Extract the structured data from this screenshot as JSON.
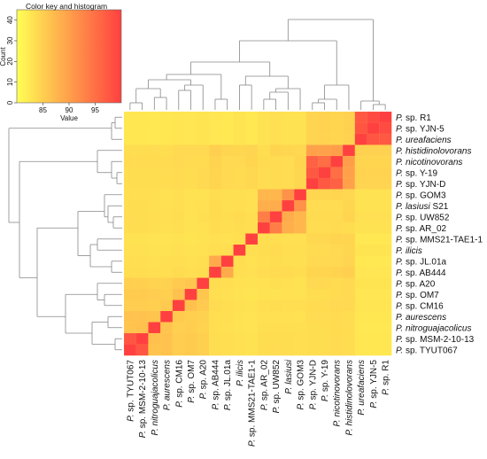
{
  "chart_data": {
    "type": "heatmap",
    "color_key": {
      "title": "Color key and histogram",
      "xlabel": "Value",
      "ylabel": "Count",
      "x_ticks": [
        "85",
        "90",
        "95"
      ],
      "y_ticks": [
        "0",
        "10",
        "20",
        "30",
        "40"
      ],
      "value_range": [
        80,
        100
      ],
      "count_range": [
        0,
        45
      ],
      "low_color": "#ffff55",
      "high_color": "#ff4040"
    },
    "rows": [
      {
        "genus": "P.",
        "species": "sp. R1",
        "italic": ""
      },
      {
        "genus": "P.",
        "species": "sp. YJN-5",
        "italic": ""
      },
      {
        "genus": "P.",
        "species": "",
        "italic": "ureafaciens"
      },
      {
        "genus": "P.",
        "species": "",
        "italic": "histidinolovorans"
      },
      {
        "genus": "P.",
        "species": "",
        "italic": "nicotinovorans"
      },
      {
        "genus": "P.",
        "species": "sp. Y-19",
        "italic": ""
      },
      {
        "genus": "P.",
        "species": "sp. YJN-D",
        "italic": ""
      },
      {
        "genus": "P.",
        "species": "sp. GOM3",
        "italic": ""
      },
      {
        "genus": "P.",
        "species": "S21",
        "italic": "lasiusi"
      },
      {
        "genus": "P.",
        "species": "sp. UW852",
        "italic": ""
      },
      {
        "genus": "P.",
        "species": "sp. AR_02",
        "italic": ""
      },
      {
        "genus": "P.",
        "species": "sp. MMS21-TAE1-1",
        "italic": ""
      },
      {
        "genus": "P.",
        "species": "",
        "italic": "ilicis"
      },
      {
        "genus": "P.",
        "species": "sp. JL.01a",
        "italic": ""
      },
      {
        "genus": "P.",
        "species": "sp. AB444",
        "italic": ""
      },
      {
        "genus": "P.",
        "species": "sp. A20",
        "italic": ""
      },
      {
        "genus": "P.",
        "species": "sp. OM7",
        "italic": ""
      },
      {
        "genus": "P.",
        "species": "sp. CM16",
        "italic": ""
      },
      {
        "genus": "P.",
        "species": "",
        "italic": "aurescens"
      },
      {
        "genus": "P.",
        "species": "",
        "italic": "nitroguajacolicus"
      },
      {
        "genus": "P.",
        "species": "sp. MSM-2-10-13",
        "italic": ""
      },
      {
        "genus": "P.",
        "species": "sp. TYUT067",
        "italic": ""
      }
    ],
    "columns": [
      {
        "genus": "P.",
        "species": "sp. TYUT067",
        "italic": ""
      },
      {
        "genus": "P.",
        "species": "sp. MSM-2-10-13",
        "italic": ""
      },
      {
        "genus": "P.",
        "species": "",
        "italic": "nitroguajacolicus"
      },
      {
        "genus": "P.",
        "species": "",
        "italic": "aurescens"
      },
      {
        "genus": "P.",
        "species": "sp. CM16",
        "italic": ""
      },
      {
        "genus": "P.",
        "species": "sp. OM7",
        "italic": ""
      },
      {
        "genus": "P.",
        "species": "sp. A20",
        "italic": ""
      },
      {
        "genus": "P.",
        "species": "sp. AB444",
        "italic": ""
      },
      {
        "genus": "P.",
        "species": "sp. JL.01a",
        "italic": ""
      },
      {
        "genus": "P.",
        "species": "",
        "italic": "ilicis"
      },
      {
        "genus": "P.",
        "species": "sp. MMS21-TAE1-1",
        "italic": ""
      },
      {
        "genus": "P.",
        "species": "sp. AR_02",
        "italic": ""
      },
      {
        "genus": "P.",
        "species": "sp. UW852",
        "italic": ""
      },
      {
        "genus": "P.",
        "species": "",
        "italic": "lasiusi"
      },
      {
        "genus": "P.",
        "species": "sp. GOM3",
        "italic": ""
      },
      {
        "genus": "P.",
        "species": "sp. YJN-D",
        "italic": ""
      },
      {
        "genus": "P.",
        "species": "sp. Y-19",
        "italic": ""
      },
      {
        "genus": "P.",
        "species": "",
        "italic": "nicotinovorans"
      },
      {
        "genus": "P.",
        "species": "",
        "italic": "histidinolovorans"
      },
      {
        "genus": "P.",
        "species": "",
        "italic": "ureafaciens"
      },
      {
        "genus": "P.",
        "species": "sp. YJN-5",
        "italic": ""
      },
      {
        "genus": "P.",
        "species": "sp. R1",
        "italic": ""
      }
    ],
    "values": [
      [
        82.5,
        82.5,
        82.4,
        82.5,
        82.7,
        82.6,
        82.8,
        82.6,
        82.4,
        82.8,
        82.4,
        83.0,
        83.2,
        83.0,
        83.0,
        84.5,
        84.6,
        84.4,
        84.8,
        97.5,
        98.8,
        100
      ],
      [
        82.5,
        82.5,
        82.4,
        82.5,
        82.7,
        82.6,
        82.8,
        82.6,
        82.4,
        82.8,
        82.4,
        83.0,
        83.2,
        83.0,
        83.0,
        84.5,
        84.6,
        84.4,
        84.8,
        97.8,
        100,
        98.8
      ],
      [
        82.5,
        82.5,
        82.4,
        82.5,
        82.7,
        82.6,
        82.8,
        82.6,
        82.4,
        82.8,
        82.4,
        83.0,
        83.2,
        83.0,
        83.0,
        84.5,
        84.6,
        84.4,
        84.8,
        100,
        97.8,
        97.5
      ],
      [
        83.6,
        83.6,
        83.7,
        83.6,
        84.0,
        84.0,
        84.0,
        85.0,
        84.5,
        84.3,
        84.5,
        83.6,
        84.4,
        84.3,
        84.2,
        89.8,
        89.8,
        90.2,
        100,
        84.8,
        84.8,
        84.8
      ],
      [
        83.8,
        83.8,
        83.8,
        83.8,
        84.0,
        83.8,
        83.8,
        84.6,
        84.0,
        84.0,
        84.4,
        83.8,
        83.8,
        83.7,
        84.4,
        96.5,
        95.2,
        100,
        90.2,
        84.4,
        84.4,
        84.4
      ],
      [
        83.6,
        83.6,
        83.6,
        83.7,
        83.8,
        83.6,
        84.0,
        84.4,
        84.0,
        83.8,
        84.1,
        83.7,
        83.8,
        83.7,
        84.3,
        97.5,
        100,
        95.2,
        89.8,
        84.6,
        84.6,
        84.6
      ],
      [
        83.6,
        83.6,
        83.6,
        83.7,
        83.8,
        83.6,
        84.0,
        84.4,
        84.0,
        83.8,
        84.1,
        83.7,
        83.8,
        83.7,
        84.3,
        100,
        97.5,
        96.5,
        89.8,
        84.5,
        84.5,
        84.5
      ],
      [
        83.4,
        83.4,
        83.3,
        83.1,
        83.4,
        83.0,
        83.0,
        83.6,
        83.3,
        83.3,
        83.2,
        87.5,
        87.5,
        91.5,
        100,
        84.3,
        84.3,
        84.4,
        84.2,
        83.0,
        83.0,
        83.0
      ],
      [
        83.6,
        83.6,
        83.3,
        83.2,
        83.4,
        83.1,
        83.2,
        83.8,
        83.3,
        83.5,
        83.2,
        88.5,
        88.6,
        100,
        91.5,
        83.7,
        83.7,
        83.7,
        84.3,
        83.0,
        83.0,
        83.0
      ],
      [
        83.7,
        83.6,
        83.4,
        83.2,
        83.6,
        83.0,
        83.3,
        83.8,
        83.6,
        83.8,
        83.4,
        93.5,
        100,
        88.6,
        87.5,
        83.8,
        83.8,
        83.8,
        84.4,
        83.2,
        83.2,
        83.2
      ],
      [
        83.6,
        83.6,
        83.3,
        83.2,
        83.4,
        83.0,
        83.1,
        83.7,
        83.4,
        83.6,
        83.5,
        100,
        93.5,
        88.5,
        87.5,
        83.7,
        83.7,
        83.8,
        83.6,
        83.0,
        83.0,
        83.0
      ],
      [
        83.0,
        83.0,
        82.9,
        82.9,
        83.0,
        82.8,
        83.0,
        83.2,
        83.1,
        83.4,
        100,
        83.5,
        83.4,
        83.2,
        83.2,
        84.1,
        84.1,
        84.4,
        84.5,
        82.4,
        82.4,
        82.4
      ],
      [
        83.2,
        83.2,
        83.0,
        83.0,
        83.2,
        83.0,
        83.1,
        83.4,
        83.5,
        100,
        83.4,
        83.6,
        83.8,
        83.5,
        83.3,
        83.8,
        83.8,
        84.0,
        84.3,
        82.8,
        82.8,
        82.8
      ],
      [
        83.4,
        83.4,
        83.2,
        83.3,
        83.5,
        83.2,
        83.4,
        88.8,
        100,
        83.5,
        83.1,
        83.4,
        83.6,
        83.3,
        83.3,
        84.0,
        84.0,
        84.0,
        84.5,
        82.4,
        82.4,
        82.4
      ],
      [
        83.6,
        83.6,
        83.4,
        83.5,
        83.8,
        83.4,
        83.6,
        100,
        88.8,
        83.4,
        83.2,
        83.7,
        83.8,
        83.8,
        83.6,
        84.4,
        84.4,
        84.6,
        85.0,
        82.6,
        82.6,
        82.6
      ],
      [
        85.0,
        85.0,
        84.7,
        84.8,
        85.5,
        86.0,
        100,
        83.6,
        83.4,
        83.1,
        83.0,
        83.1,
        83.3,
        83.2,
        83.0,
        84.0,
        84.0,
        83.8,
        84.0,
        82.8,
        82.8,
        82.8
      ],
      [
        85.4,
        85.4,
        85.2,
        85.0,
        86.5,
        100,
        86.0,
        83.4,
        83.2,
        83.0,
        82.8,
        83.0,
        83.0,
        83.1,
        83.0,
        83.6,
        83.6,
        83.8,
        84.0,
        82.6,
        82.6,
        82.6
      ],
      [
        85.2,
        85.2,
        85.0,
        85.6,
        100,
        86.5,
        85.5,
        83.8,
        83.5,
        83.2,
        83.0,
        83.4,
        83.6,
        83.4,
        83.4,
        83.8,
        83.8,
        84.0,
        84.0,
        82.7,
        82.7,
        82.7
      ],
      [
        86.4,
        86.4,
        86.2,
        100,
        85.6,
        85.0,
        84.8,
        83.5,
        83.3,
        83.0,
        82.9,
        83.2,
        83.2,
        83.2,
        83.1,
        83.7,
        83.7,
        83.8,
        83.6,
        82.5,
        82.5,
        82.5
      ],
      [
        86.2,
        86.6,
        100,
        86.2,
        85.0,
        85.2,
        84.7,
        83.4,
        83.2,
        83.0,
        82.9,
        83.3,
        83.4,
        83.3,
        83.3,
        83.6,
        83.6,
        83.8,
        83.7,
        82.4,
        82.4,
        82.4
      ],
      [
        97.8,
        100,
        86.6,
        86.4,
        85.2,
        85.4,
        85.0,
        83.6,
        83.4,
        83.2,
        83.0,
        83.6,
        83.6,
        83.6,
        83.4,
        83.6,
        83.6,
        83.8,
        83.6,
        82.5,
        82.5,
        82.5
      ],
      [
        100,
        97.8,
        86.2,
        86.4,
        85.2,
        85.4,
        85.0,
        83.6,
        83.4,
        83.2,
        83.0,
        83.6,
        83.7,
        83.6,
        83.4,
        83.6,
        83.6,
        83.8,
        83.6,
        82.5,
        82.5,
        82.5
      ]
    ]
  }
}
